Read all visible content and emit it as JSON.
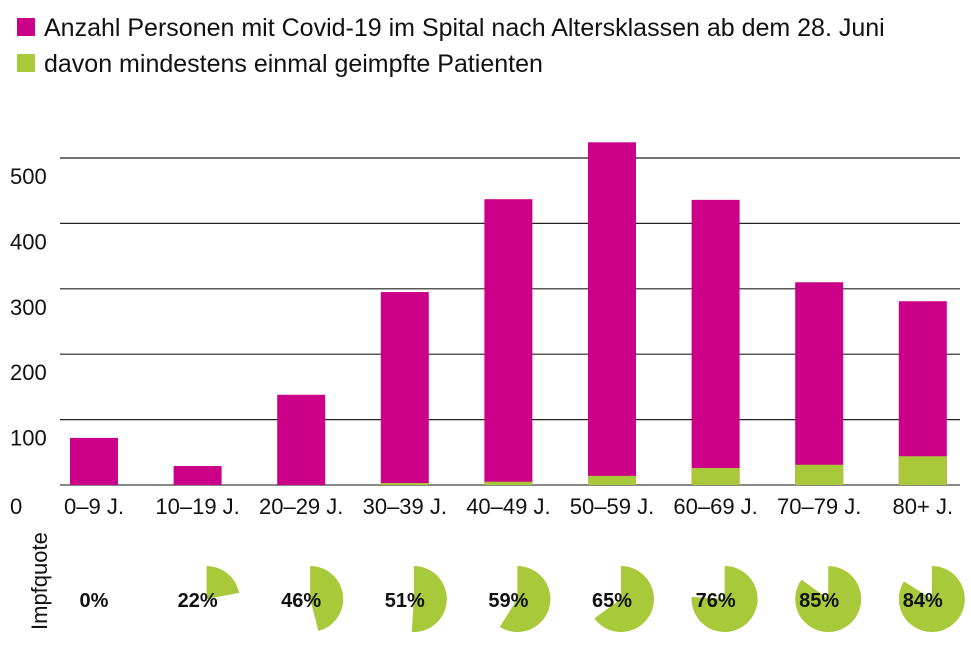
{
  "chart_data": {
    "type": "bar",
    "title": "",
    "legend": [
      {
        "label": "Anzahl Personen mit Covid-19 im Spital nach Altersklassen ab dem 28. Juni",
        "color": "#cc0088"
      },
      {
        "label": "davon mindestens einmal geimpfte Patienten",
        "color": "#a8c93a"
      }
    ],
    "legend_position": "top-left",
    "categories": [
      "0–9 J.",
      "10–19 J.",
      "20–29 J.",
      "30–39 J.",
      "40–49 J.",
      "50–59 J.",
      "60–69 J.",
      "70–79 J.",
      "80+ J."
    ],
    "series": [
      {
        "name": "Anzahl Personen mit Covid-19 im Spital nach Altersklassen ab dem 28. Juni",
        "values": [
          72,
          29,
          138,
          295,
          437,
          524,
          436,
          310,
          281
        ]
      },
      {
        "name": "davon mindestens einmal geimpfte Patienten",
        "values": [
          0,
          0,
          0,
          3,
          5,
          14,
          26,
          31,
          44
        ]
      }
    ],
    "ylim": [
      0,
      520
    ],
    "yticks": [
      0,
      100,
      200,
      300,
      400,
      500
    ],
    "grid": true,
    "impfquote_label": "Impfquote",
    "impfquote": [
      0,
      22,
      46,
      51,
      59,
      65,
      76,
      85,
      84
    ],
    "impfquote_labels": [
      "0%",
      "22%",
      "46%",
      "51%",
      "59%",
      "65%",
      "76%",
      "85%",
      "84%"
    ]
  }
}
